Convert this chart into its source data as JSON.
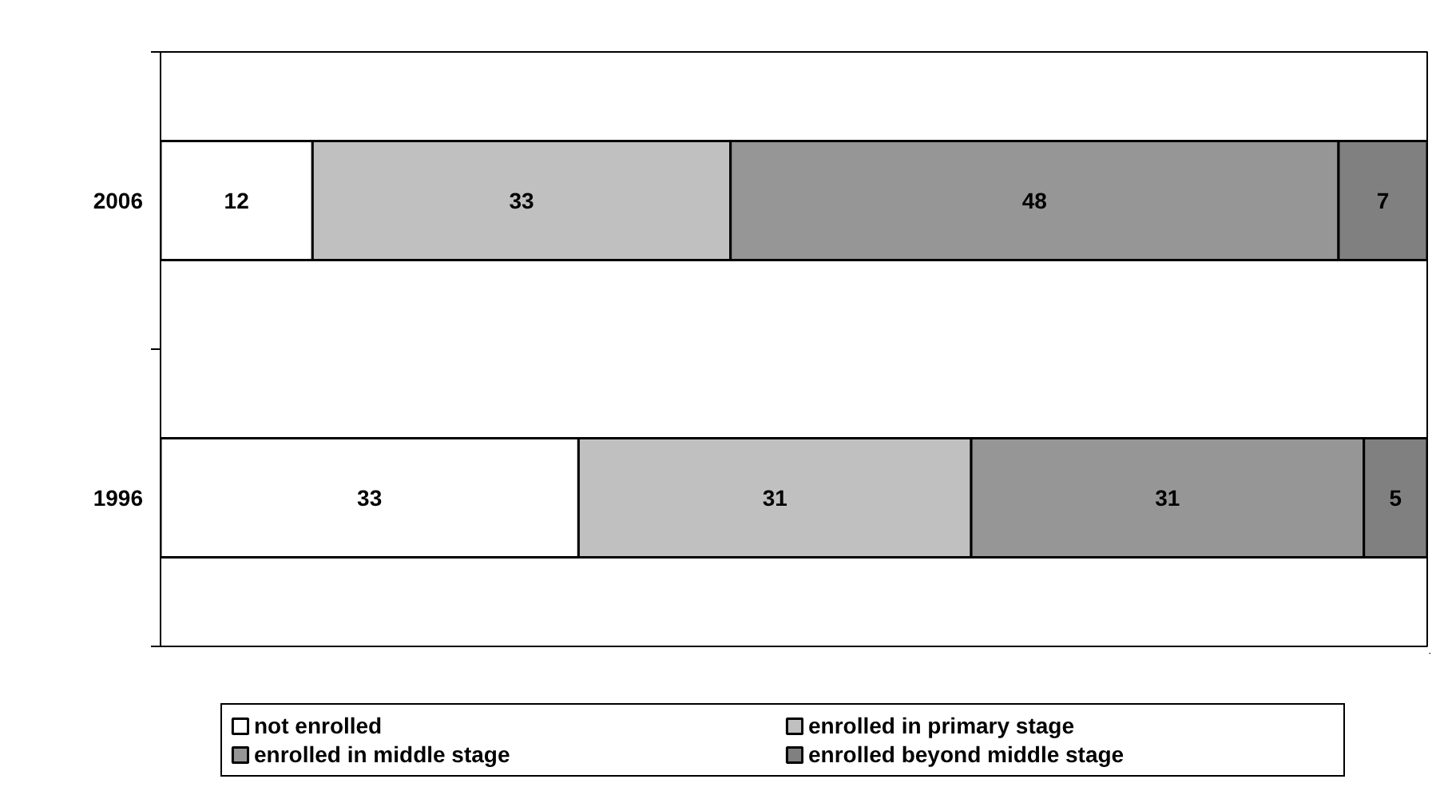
{
  "chart_data": {
    "type": "bar",
    "orientation": "horizontal",
    "stacked": true,
    "data_labels": true,
    "grid": false,
    "legend": "bottom",
    "categories": [
      "2006",
      "1996"
    ],
    "series": [
      {
        "name": "not enrolled",
        "color": "#ffffff",
        "values": [
          12,
          33
        ]
      },
      {
        "name": "enrolled in primary stage",
        "color": "#c0c0c0",
        "values": [
          33,
          31
        ]
      },
      {
        "name": "enrolled in middle stage",
        "color": "#969696",
        "values": [
          48,
          31
        ]
      },
      {
        "name": "enrolled beyond middle stage",
        "color": "#808080",
        "values": [
          7,
          5
        ]
      }
    ]
  }
}
